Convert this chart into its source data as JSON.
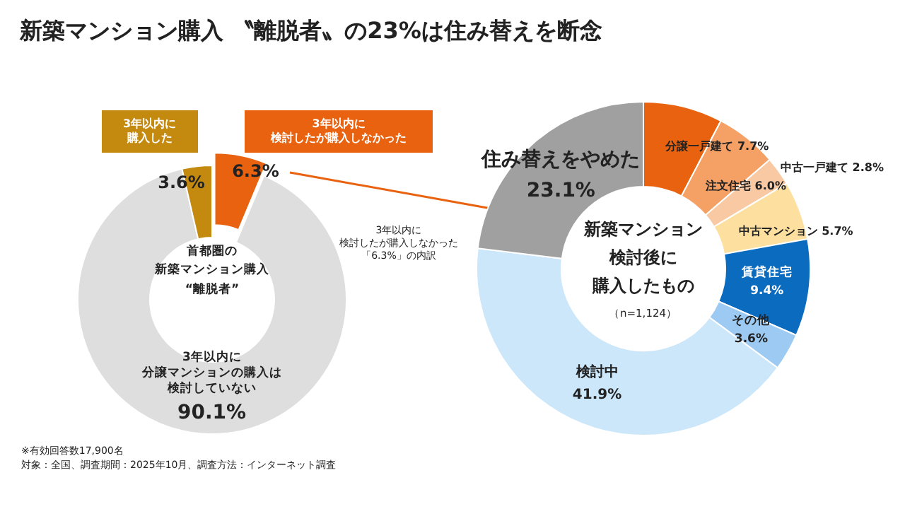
{
  "chart_data": [
    {
      "type": "donut",
      "title": "新築マンション購入 〝離脱者〟の23%は住み替えを断念",
      "categories": [
        "3年以内に検討したが購入しなかった",
        "3年以内に分譲マンションの購入は検討していない",
        "3年以内に購入した"
      ],
      "values": [
        6.3,
        90.1,
        3.6
      ],
      "value_labels": [
        "6.3%",
        "90.1%",
        "3.6%"
      ],
      "colors": [
        "#e8620f",
        "#dedede",
        "#c48a10"
      ],
      "annotations": [
        "首都圏の新築マンション購入“離脱者”",
        "3年以内に検討したが購入しなかった「6.3%」の内訳",
        "※有効回答数17,900名",
        "対象：全国、調査期間：2025年10月、調査方法：インターネット調査"
      ]
    },
    {
      "type": "donut",
      "categories": [
        "分譲一戸建て",
        "注文住宅",
        "中古一戸建て",
        "中古マンション",
        "賃貸住宅",
        "その他",
        "検討中",
        "住み替えをやめた"
      ],
      "values": [
        7.7,
        6.0,
        2.8,
        5.7,
        9.4,
        3.6,
        41.9,
        23.1
      ],
      "value_labels": [
        "7.7%",
        "6.0%",
        "2.8%",
        "5.7%",
        "9.4%",
        "3.6%",
        "41.9%",
        "23.1%"
      ],
      "colors": [
        "#e8620f",
        "#f5a064",
        "#f9c9a3",
        "#fde0a0",
        "#0a6bbf",
        "#9ccaf2",
        "#cce6fa",
        "#a0a0a0"
      ],
      "annotations": [
        "新築マンション検討後に購入したもの",
        "（n=1,124）"
      ]
    }
  ]
}
